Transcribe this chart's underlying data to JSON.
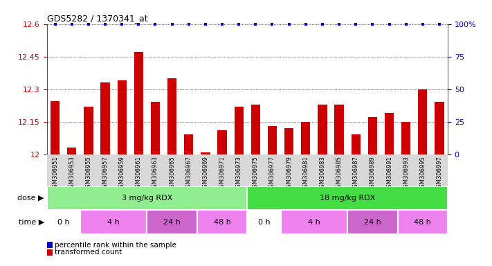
{
  "title": "GDS5282 / 1370341_at",
  "samples": [
    "GSM306951",
    "GSM306953",
    "GSM306955",
    "GSM306957",
    "GSM306959",
    "GSM306961",
    "GSM306963",
    "GSM306965",
    "GSM306967",
    "GSM306969",
    "GSM306971",
    "GSM306973",
    "GSM306975",
    "GSM306977",
    "GSM306979",
    "GSM306981",
    "GSM306983",
    "GSM306985",
    "GSM306987",
    "GSM306989",
    "GSM306991",
    "GSM306993",
    "GSM306995",
    "GSM306997"
  ],
  "values": [
    12.245,
    12.03,
    12.22,
    12.33,
    12.34,
    12.47,
    12.24,
    12.35,
    12.09,
    12.01,
    12.11,
    12.22,
    12.23,
    12.13,
    12.12,
    12.15,
    12.23,
    12.23,
    12.09,
    12.17,
    12.19,
    12.15,
    12.3,
    12.24
  ],
  "bar_color": "#cc0000",
  "percentile_color": "#0000cc",
  "ymin": 12.0,
  "ymax": 12.6,
  "yticks": [
    12.0,
    12.15,
    12.3,
    12.45,
    12.6
  ],
  "ytick_labels": [
    "12",
    "12.15",
    "12.3",
    "12.45",
    "12.6"
  ],
  "right_yticks": [
    0,
    25,
    50,
    75,
    100
  ],
  "right_ytick_labels": [
    "0",
    "25",
    "50",
    "75",
    "100%"
  ],
  "dose_groups": [
    {
      "label": "3 mg/kg RDX",
      "start": 0,
      "end": 11,
      "color": "#90ee90"
    },
    {
      "label": "18 mg/kg RDX",
      "start": 12,
      "end": 23,
      "color": "#44dd44"
    }
  ],
  "time_groups": [
    {
      "label": "0 h",
      "start": 0,
      "end": 1,
      "color": "#ffffff"
    },
    {
      "label": "4 h",
      "start": 2,
      "end": 5,
      "color": "#ee82ee"
    },
    {
      "label": "24 h",
      "start": 6,
      "end": 8,
      "color": "#cc66cc"
    },
    {
      "label": "48 h",
      "start": 9,
      "end": 11,
      "color": "#ee82ee"
    },
    {
      "label": "0 h",
      "start": 12,
      "end": 13,
      "color": "#ffffff"
    },
    {
      "label": "4 h",
      "start": 14,
      "end": 17,
      "color": "#ee82ee"
    },
    {
      "label": "24 h",
      "start": 18,
      "end": 20,
      "color": "#cc66cc"
    },
    {
      "label": "48 h",
      "start": 21,
      "end": 23,
      "color": "#ee82ee"
    }
  ],
  "tick_label_color_left": "#cc0000",
  "tick_label_color_right": "#0000cc",
  "sample_bg_color": "#d8d8d8",
  "legend_items": [
    {
      "label": "transformed count",
      "color": "#cc0000"
    },
    {
      "label": "percentile rank within the sample",
      "color": "#0000cc"
    }
  ]
}
